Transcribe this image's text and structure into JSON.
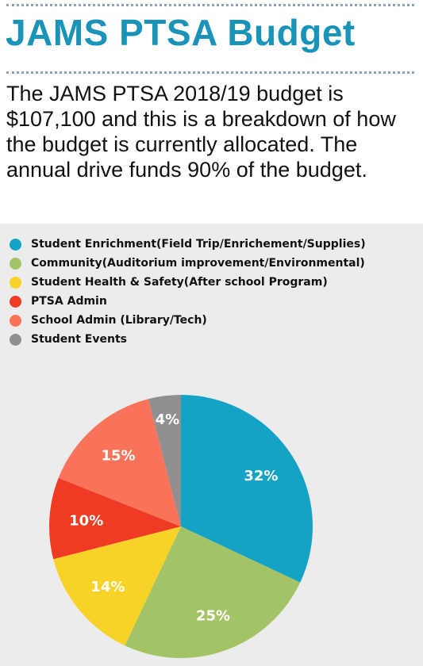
{
  "title": "JAMS PTSA Budget",
  "intro": "The JAMS PTSA 2018/19  budget is $107,100 and this is a breakdown of how the budget is currently allocated. The annual drive funds 90% of the budget.",
  "chart_data": {
    "type": "pie",
    "title": "",
    "legend_position": "top-left",
    "slices": [
      {
        "label": "Student Enrichment(Field Trip/Enrichement/Supplies)",
        "value": 32,
        "display": "32%",
        "color": "#14a3c5"
      },
      {
        "label": "Community(Auditorium improvement/Environmental)",
        "value": 25,
        "display": "25%",
        "color": "#a3c466"
      },
      {
        "label": "Student Health & Safety(After school Program)",
        "value": 14,
        "display": "14%",
        "color": "#f7d227"
      },
      {
        "label": "PTSA Admin",
        "value": 10,
        "display": "10%",
        "color": "#ef3b24"
      },
      {
        "label": "School Admin (Library/Tech)",
        "value": 15,
        "display": "15%",
        "color": "#f9735a"
      },
      {
        "label": "Student Events",
        "value": 4,
        "display": "4%",
        "color": "#8f8f8f"
      }
    ]
  }
}
